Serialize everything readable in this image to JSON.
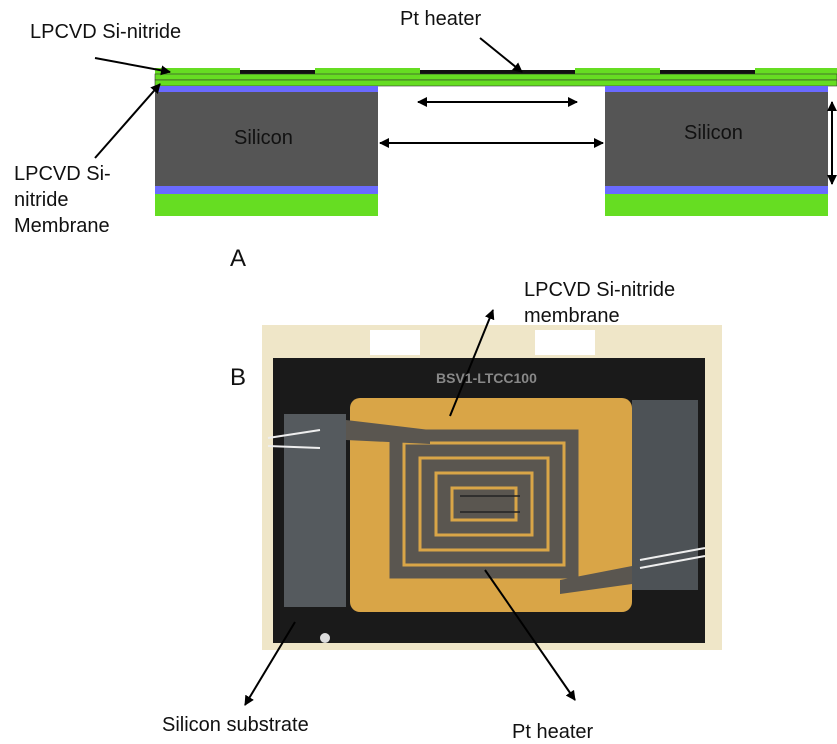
{
  "panel_a": {
    "label": "A",
    "nitride_top": "LPCVD Si-nitride",
    "pt_heater": "Pt heater",
    "silicon_left": "Silicon",
    "silicon_right": "Silicon",
    "membrane": [
      "LPCVD Si-",
      "nitride",
      "Membrane"
    ]
  },
  "panel_b": {
    "label": "B",
    "chip_marking": "BSV1-LTCC100",
    "membrane": [
      "LPCVD Si-nitride",
      "membrane"
    ],
    "substrate": "Silicon substrate",
    "pt_heater": "Pt heater"
  }
}
